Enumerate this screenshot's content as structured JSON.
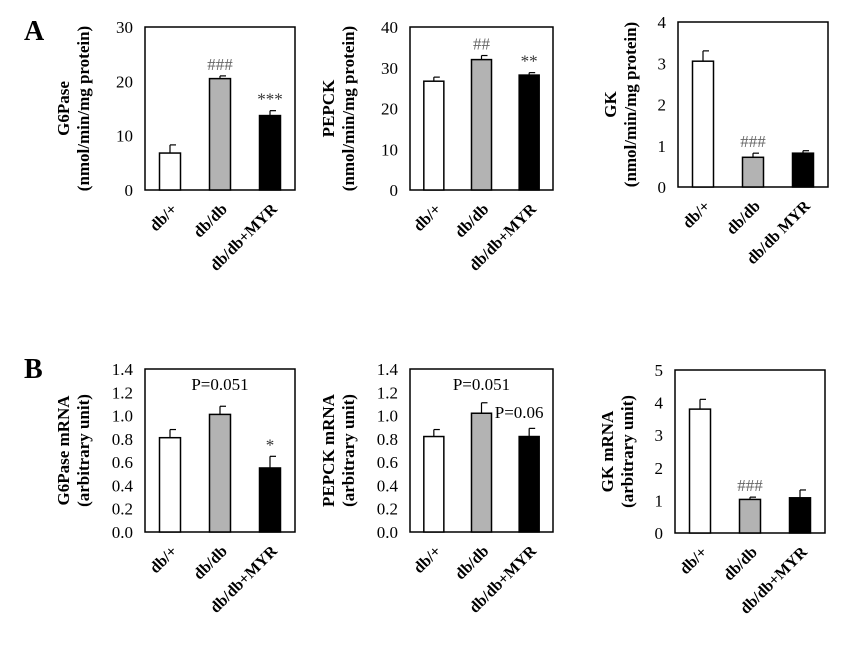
{
  "panels": [
    {
      "label": "A"
    },
    {
      "label": "B"
    }
  ],
  "colors": {
    "db_plus": "#ffffff",
    "db_db": "#b3b3b3",
    "db_db_myr": "#000000",
    "hash_annotation": "#666666",
    "star_annotation": "#333333"
  },
  "chart_data": [
    {
      "type": "bar",
      "panel": "A",
      "ylabel": "G6Pase",
      "ylabel2": "(nmol/min/mg protein)",
      "ylim": [
        0,
        30
      ],
      "yticks": [
        "0",
        "10",
        "20",
        "30"
      ],
      "categories": [
        "db/+",
        "db/db",
        "db/db+MYR"
      ],
      "values": [
        6.8,
        20.5,
        13.7
      ],
      "error_upper": [
        8.3,
        21.0,
        14.6
      ],
      "annotations": [
        {
          "text": "###",
          "bar": 1,
          "style": "hash"
        },
        {
          "text": "***",
          "bar": 2,
          "style": "star"
        }
      ]
    },
    {
      "type": "bar",
      "panel": "A",
      "ylabel": "PEPCK",
      "ylabel2": "(nmol/min/mg protein)",
      "ylim": [
        0,
        40
      ],
      "yticks": [
        "0",
        "10",
        "20",
        "30",
        "40"
      ],
      "categories": [
        "db/+",
        "db/db",
        "db/db+MYR"
      ],
      "values": [
        26.7,
        32.0,
        28.2
      ],
      "error_upper": [
        27.7,
        33.0,
        28.8
      ],
      "annotations": [
        {
          "text": "##",
          "bar": 1,
          "style": "hash"
        },
        {
          "text": "**",
          "bar": 2,
          "style": "star"
        }
      ]
    },
    {
      "type": "bar",
      "panel": "A",
      "ylabel": "GK",
      "ylabel2": "(nmol/min/mg protein)",
      "ylim": [
        0,
        4
      ],
      "yticks": [
        "0",
        "1",
        "2",
        "3",
        "4"
      ],
      "categories": [
        "db/+",
        "db/db",
        "db/db MYR"
      ],
      "values": [
        3.05,
        0.72,
        0.82
      ],
      "error_upper": [
        3.3,
        0.82,
        0.88
      ],
      "annotations": [
        {
          "text": "###",
          "bar": 1,
          "style": "hash"
        }
      ]
    },
    {
      "type": "bar",
      "panel": "B",
      "ylabel": "G6Pase mRNA",
      "ylabel2": "(arbitrary unit)",
      "ylim": [
        0,
        1.4
      ],
      "yticks": [
        "0.0",
        "0.2",
        "0.4",
        "0.6",
        "0.8",
        "1.0",
        "1.2",
        "1.4"
      ],
      "categories": [
        "db/+",
        "db/db",
        "db/db+MYR"
      ],
      "values": [
        0.81,
        1.01,
        0.55
      ],
      "error_upper": [
        0.88,
        1.08,
        0.65
      ],
      "annotations": [
        {
          "text": "P=0.051",
          "bar": 1,
          "style": "p",
          "value": 1.22
        },
        {
          "text": "*",
          "bar": 2,
          "style": "star"
        }
      ]
    },
    {
      "type": "bar",
      "panel": "B",
      "ylabel": "PEPCK mRNA",
      "ylabel2": "(arbitrary unit)",
      "ylim": [
        0,
        1.4
      ],
      "yticks": [
        "0.0",
        "0.2",
        "0.4",
        "0.6",
        "0.8",
        "1.0",
        "1.2",
        "1.4"
      ],
      "categories": [
        "db/+",
        "db/db",
        "db/db+MYR"
      ],
      "values": [
        0.82,
        1.02,
        0.82
      ],
      "error_upper": [
        0.88,
        1.11,
        0.89
      ],
      "annotations": [
        {
          "text": "P=0.051",
          "bar": 1,
          "style": "p",
          "value": 1.22
        },
        {
          "text": "P=0.06",
          "bar": 2,
          "style": "p",
          "value": 0.98
        }
      ]
    },
    {
      "type": "bar",
      "panel": "B",
      "ylabel": "GK mRNA",
      "ylabel2": "(arbitrary unit)",
      "ylim": [
        0,
        5
      ],
      "yticks": [
        "0",
        "1",
        "2",
        "3",
        "4",
        "5"
      ],
      "categories": [
        "db/+",
        "db/db",
        "db/db+MYR"
      ],
      "values": [
        3.8,
        1.03,
        1.08
      ],
      "error_upper": [
        4.1,
        1.1,
        1.32
      ],
      "annotations": [
        {
          "text": "###",
          "bar": 1,
          "style": "hash"
        }
      ]
    }
  ]
}
